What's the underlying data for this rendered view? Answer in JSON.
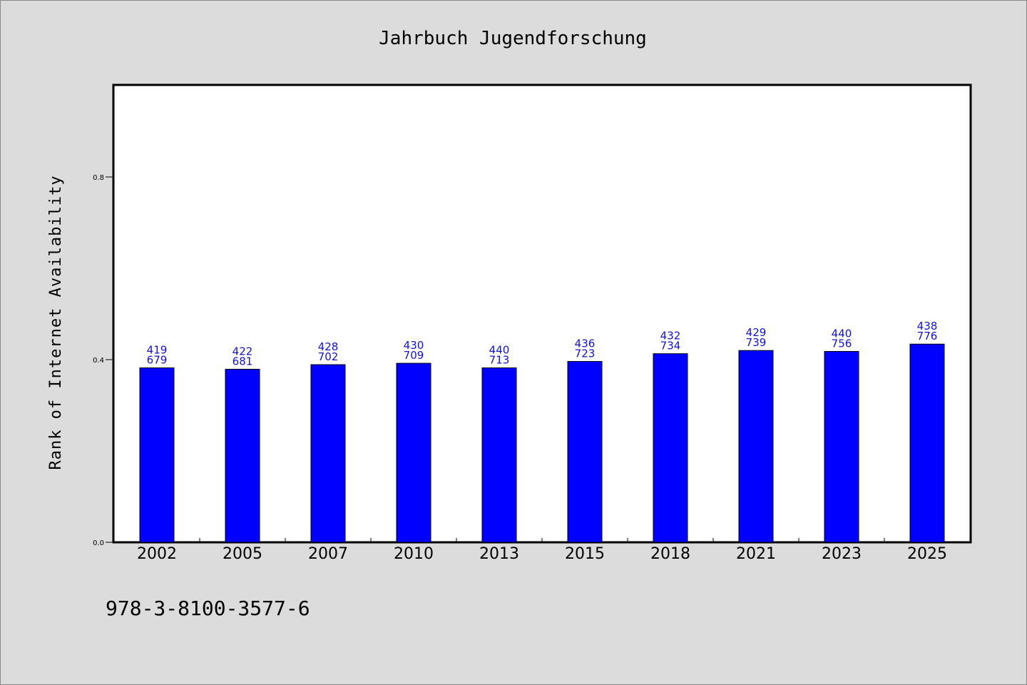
{
  "chart_data": {
    "type": "bar",
    "title": "Jahrbuch Jugendforschung",
    "xlabel": "",
    "ylabel": "Rank of Internet Availability",
    "ylim": [
      0,
      1.0
    ],
    "yticks": [
      0.0,
      0.4,
      0.8
    ],
    "ytick_labels": [
      "0.0",
      "0.4",
      "0.8"
    ],
    "categories": [
      "2002",
      "2005",
      "2007",
      "2010",
      "2013",
      "2015",
      "2018",
      "2021",
      "2023",
      "2025"
    ],
    "values": [
      0.382,
      0.379,
      0.389,
      0.392,
      0.382,
      0.396,
      0.413,
      0.42,
      0.418,
      0.434
    ],
    "labels_top": [
      "419",
      "422",
      "428",
      "430",
      "440",
      "436",
      "432",
      "429",
      "440",
      "438"
    ],
    "labels_bottom": [
      "679",
      "681",
      "702",
      "709",
      "713",
      "723",
      "734",
      "739",
      "756",
      "776"
    ],
    "bar_color": "#0000ff",
    "label_color": "#1414c8",
    "grid": false,
    "legend": "none"
  },
  "footer": {
    "isbn": "978-3-8100-3577-6"
  }
}
